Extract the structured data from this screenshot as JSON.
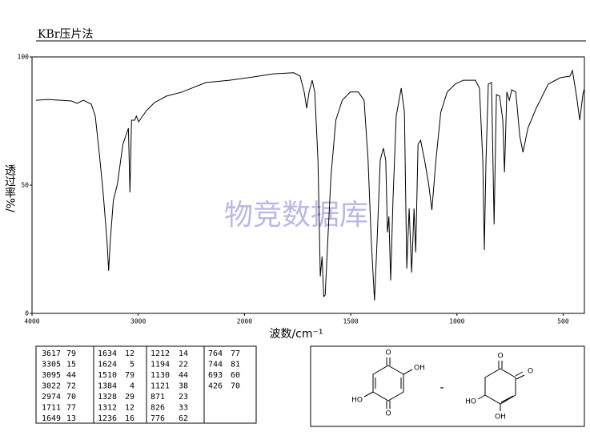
{
  "chart_data": {
    "type": "line",
    "title": "KBr压片法",
    "watermark": "物竞数据库",
    "x_label": "波数/cm⁻¹",
    "y_label": "透过率%/",
    "xlim": [
      4000,
      400
    ],
    "xbreak": 2000,
    "xticks": [
      4000,
      3000,
      2000,
      1500,
      1000,
      500
    ],
    "ylim": [
      0,
      100
    ],
    "yticks": [
      0,
      50,
      100
    ],
    "color": "#000000",
    "x": [
      3963,
      3851,
      3628,
      3576,
      3517,
      3442,
      3405,
      3368,
      3331,
      3294,
      3279,
      3264,
      3234,
      3197,
      3145,
      3093,
      3078,
      3063,
      3033,
      3018,
      2996,
      2959,
      2922,
      2848,
      2736,
      2587,
      2364,
      2141,
      1958,
      1863,
      1768,
      1738,
      1719,
      1707,
      1696,
      1681,
      1669,
      1654,
      1643,
      1635,
      1627,
      1620,
      1608,
      1593,
      1570,
      1540,
      1502,
      1464,
      1437,
      1418,
      1403,
      1388,
      1376,
      1361,
      1346,
      1335,
      1327,
      1320,
      1312,
      1301,
      1286,
      1262,
      1247,
      1236,
      1225,
      1213,
      1202,
      1194,
      1183,
      1171,
      1152,
      1133,
      1118,
      1099,
      1076,
      1046,
      1008,
      970,
      913,
      894,
      878,
      871,
      863,
      852,
      837,
      825,
      814,
      799,
      784,
      776,
      765,
      753,
      742,
      723,
      704,
      689,
      666,
      627,
      570,
      513,
      468,
      456,
      437,
      422,
      407,
      402
    ],
    "values": [
      83.1,
      83.4,
      82.8,
      81.9,
      83.1,
      81.6,
      76.9,
      62.8,
      47.2,
      28.1,
      16.6,
      28.1,
      44.1,
      50.3,
      65.9,
      72.2,
      47.2,
      75.3,
      75.3,
      76.9,
      74.7,
      76.9,
      79.1,
      82.2,
      84.7,
      86.3,
      90,
      90.9,
      92.2,
      93.4,
      93.8,
      92.5,
      86.3,
      80,
      86.3,
      90.9,
      86.3,
      59.7,
      14.4,
      22.2,
      6.6,
      7.2,
      28.1,
      53.4,
      75.3,
      83.1,
      86.3,
      86.3,
      83.1,
      59.7,
      28.1,
      5,
      28.1,
      59.7,
      64.4,
      59.7,
      31.6,
      37.8,
      12.8,
      44.1,
      76.9,
      87.8,
      78.4,
      17.5,
      40.9,
      15.9,
      40.9,
      23.8,
      65.9,
      67.5,
      59.7,
      50.3,
      40.3,
      59.7,
      78.4,
      86.3,
      89.4,
      90.9,
      90.9,
      87.8,
      59.7,
      24.7,
      59.7,
      89.4,
      90,
      34.7,
      85.3,
      84.7,
      75.3,
      55,
      86.3,
      83.1,
      87.2,
      86.3,
      69.1,
      62.8,
      72.2,
      80,
      89.4,
      91.9,
      92.5,
      94.7,
      84.7,
      75.3,
      85.3,
      87.2
    ]
  },
  "peak_table": [
    [
      3617,
      79
    ],
    [
      3305,
      15
    ],
    [
      3095,
      44
    ],
    [
      3022,
      72
    ],
    [
      2974,
      70
    ],
    [
      1711,
      77
    ],
    [
      1649,
      13
    ],
    [
      1634,
      12
    ],
    [
      1624,
      5
    ],
    [
      1510,
      79
    ],
    [
      1384,
      4
    ],
    [
      1328,
      29
    ],
    [
      1312,
      12
    ],
    [
      1236,
      16
    ],
    [
      1212,
      14
    ],
    [
      1194,
      22
    ],
    [
      1130,
      44
    ],
    [
      1121,
      38
    ],
    [
      871,
      23
    ],
    [
      826,
      33
    ],
    [
      776,
      62
    ],
    [
      764,
      77
    ],
    [
      744,
      81
    ],
    [
      693,
      60
    ],
    [
      426,
      70
    ]
  ],
  "structures": [
    {
      "labels": [
        "O",
        "OH",
        "HO",
        "O"
      ]
    },
    {
      "labels": [
        "O",
        "O",
        "HO",
        "OH"
      ]
    }
  ],
  "separator": "-"
}
